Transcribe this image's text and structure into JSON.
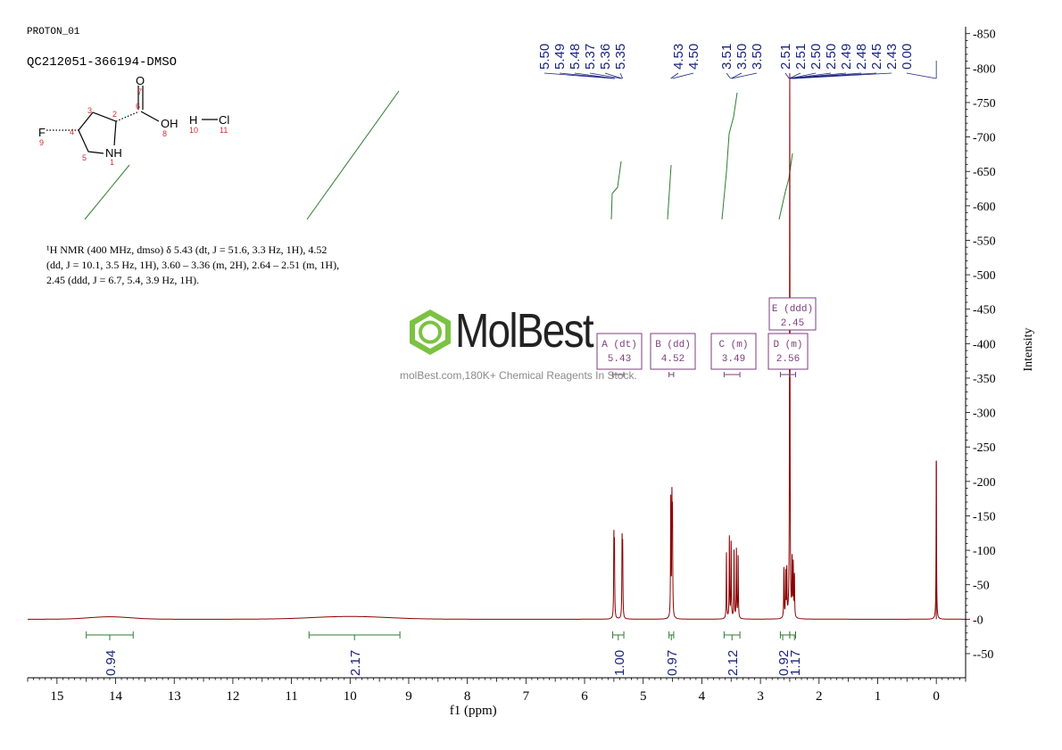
{
  "header": {
    "experiment": "PROTON_01",
    "sample": "QC212051-366194-DMSO"
  },
  "structure": {
    "atoms": [
      "O",
      "OH",
      "F",
      "NH",
      "H",
      "Cl"
    ],
    "numbers": [
      "1",
      "2",
      "3",
      "4",
      "5",
      "6",
      "7",
      "8",
      "9",
      "10",
      "11"
    ]
  },
  "description": {
    "lines": [
      "¹H NMR (400 MHz, dmso) δ 5.43 (dt, J = 51.6, 3.3 Hz, 1H), 4.52",
      "(dd, J = 10.1, 3.5 Hz, 1H), 3.60 – 3.36 (m, 2H), 2.64 – 2.51 (m, 1H),",
      "2.45 (ddd, J = 6.7, 5.4, 3.9 Hz, 1H)."
    ]
  },
  "watermark": {
    "brand": "MolBest",
    "tagline": "molBest.com,180K+ Chemical Reagents In Stock."
  },
  "colors": {
    "spectrum": "#8b0000",
    "integral": "#2e7d32",
    "peak_labels": "#1a237e",
    "multiplet_box": "#7b3f7b",
    "logo_green": "#7cc242"
  },
  "chart_data": {
    "type": "line",
    "xlabel": "f1 (ppm)",
    "ylabel": "Intensity",
    "x_reversed": true,
    "xlim": [
      15.5,
      -0.5
    ],
    "ylim": [
      -85,
      860
    ],
    "x_ticks": [
      15,
      14,
      13,
      12,
      11,
      10,
      9,
      8,
      7,
      6,
      5,
      4,
      3,
      2,
      1,
      0
    ],
    "y_ticks": [
      -50,
      0,
      50,
      100,
      150,
      200,
      250,
      300,
      350,
      400,
      450,
      500,
      550,
      600,
      650,
      700,
      750,
      800,
      850
    ],
    "peaks": [
      {
        "ppm": 5.5,
        "height": 112
      },
      {
        "ppm": 5.49,
        "height": 100
      },
      {
        "ppm": 5.36,
        "height": 108
      },
      {
        "ppm": 5.35,
        "height": 98
      },
      {
        "ppm": 4.53,
        "height": 170
      },
      {
        "ppm": 4.51,
        "height": 160
      },
      {
        "ppm": 4.5,
        "height": 140
      },
      {
        "ppm": 3.58,
        "height": 95
      },
      {
        "ppm": 3.53,
        "height": 118
      },
      {
        "ppm": 3.5,
        "height": 110
      },
      {
        "ppm": 3.45,
        "height": 98
      },
      {
        "ppm": 3.41,
        "height": 100
      },
      {
        "ppm": 3.38,
        "height": 90
      },
      {
        "ppm": 2.6,
        "height": 72
      },
      {
        "ppm": 2.57,
        "height": 65
      },
      {
        "ppm": 2.55,
        "height": 68
      },
      {
        "ppm": 2.5,
        "height": 790
      },
      {
        "ppm": 2.46,
        "height": 80
      },
      {
        "ppm": 2.44,
        "height": 75
      },
      {
        "ppm": 2.42,
        "height": 60
      },
      {
        "ppm": 0.0,
        "height": 230
      }
    ],
    "peak_labels": [
      {
        "text": "5.50",
        "ppm": 5.5
      },
      {
        "text": "5.49",
        "ppm": 5.49
      },
      {
        "text": "5.48",
        "ppm": 5.48
      },
      {
        "text": "5.37",
        "ppm": 5.37
      },
      {
        "text": "5.36",
        "ppm": 5.36
      },
      {
        "text": "5.35",
        "ppm": 5.35
      },
      {
        "text": "4.53",
        "ppm": 4.53
      },
      {
        "text": "4.50",
        "ppm": 4.5
      },
      {
        "text": "3.51",
        "ppm": 3.51
      },
      {
        "text": "3.50",
        "ppm": 3.5
      },
      {
        "text": "3.50",
        "ppm": 3.49
      },
      {
        "text": "2.51",
        "ppm": 2.51
      },
      {
        "text": "2.51",
        "ppm": 2.508
      },
      {
        "text": "2.50",
        "ppm": 2.505
      },
      {
        "text": "2.50",
        "ppm": 2.5
      },
      {
        "text": "2.49",
        "ppm": 2.49
      },
      {
        "text": "2.48",
        "ppm": 2.48
      },
      {
        "text": "2.45",
        "ppm": 2.45
      },
      {
        "text": "2.43",
        "ppm": 2.43
      },
      {
        "text": "0.00",
        "ppm": 0.0
      }
    ],
    "multiplets": [
      {
        "label": "A (dt)",
        "shift": "5.43",
        "ppm_from": 5.52,
        "ppm_to": 5.33
      },
      {
        "label": "B (dd)",
        "shift": "4.52",
        "ppm_from": 4.56,
        "ppm_to": 4.48
      },
      {
        "label": "C (m)",
        "shift": "3.49",
        "ppm_from": 3.62,
        "ppm_to": 3.35
      },
      {
        "label": "D (m)",
        "shift": "2.56",
        "ppm_from": 2.66,
        "ppm_to": 2.5
      },
      {
        "label": "E (ddd)",
        "shift": "2.45",
        "ppm_from": 2.5,
        "ppm_to": 2.4
      }
    ],
    "integrals": [
      {
        "value": "0.94",
        "ppm_from": 14.5,
        "ppm_to": 13.7
      },
      {
        "value": "2.17",
        "ppm_from": 10.7,
        "ppm_to": 9.15
      },
      {
        "value": "1.00",
        "ppm_from": 5.52,
        "ppm_to": 5.33
      },
      {
        "value": "0.97",
        "ppm_from": 4.56,
        "ppm_to": 4.48
      },
      {
        "value": "2.12",
        "ppm_from": 3.62,
        "ppm_to": 3.35
      },
      {
        "value": "0.92",
        "ppm_from": 2.66,
        "ppm_to": 2.5
      },
      {
        "value": "1.17",
        "ppm_from": 2.5,
        "ppm_to": 2.4
      }
    ]
  }
}
